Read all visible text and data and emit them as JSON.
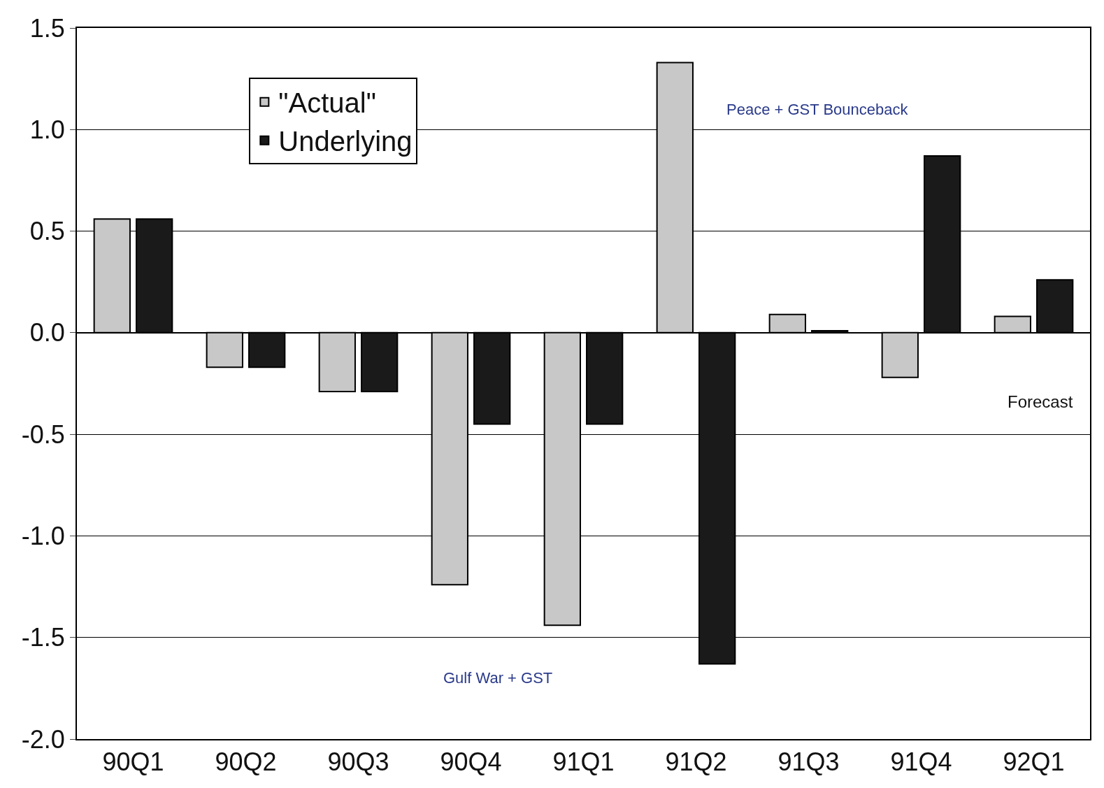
{
  "chart_data": {
    "type": "bar",
    "categories": [
      "90Q1",
      "90Q2",
      "90Q3",
      "90Q4",
      "91Q1",
      "91Q2",
      "91Q3",
      "91Q4",
      "92Q1"
    ],
    "series": [
      {
        "name": "\"Actual\"",
        "color": "#c8c8c8",
        "values": [
          0.56,
          -0.17,
          -0.29,
          -1.24,
          -1.44,
          1.33,
          0.09,
          -0.22,
          0.08
        ]
      },
      {
        "name": "Underlying",
        "color": "#1a1a1a",
        "values": [
          0.56,
          -0.17,
          -0.29,
          -0.45,
          -0.45,
          -1.63,
          0.01,
          0.87,
          0.26
        ]
      }
    ],
    "ylim": [
      -2.0,
      1.5
    ],
    "yticks": [
      {
        "value": -2,
        "label": "-2.0"
      },
      {
        "value": -1.5,
        "label": "-1.5"
      },
      {
        "value": -1,
        "label": "-1.0"
      },
      {
        "value": -0.5,
        "label": "-0.5"
      },
      {
        "value": 0,
        "label": "0.0"
      },
      {
        "value": 0.5,
        "label": "0.5"
      },
      {
        "value": 1,
        "label": "1.0"
      },
      {
        "value": 1.5,
        "label": "1.5"
      }
    ],
    "grid": "y",
    "legend": "top left",
    "annotations": [
      "Forecast",
      "Gulf War + GST",
      "Peace + GST Bounceback"
    ]
  }
}
